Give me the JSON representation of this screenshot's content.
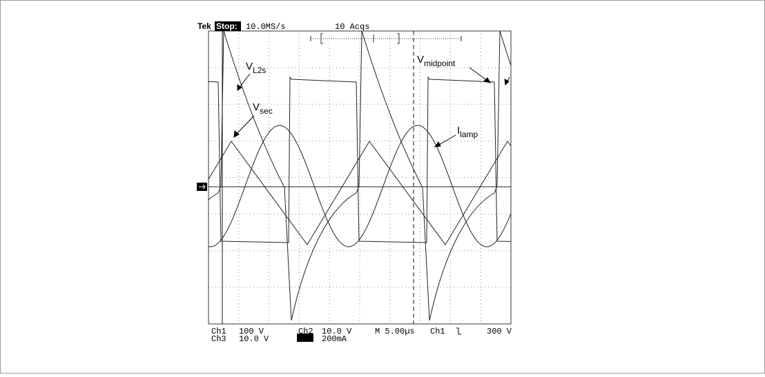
{
  "header": {
    "brand": "Tek",
    "status": "Stop:",
    "sample_rate": "10.0MS/s",
    "acquisitions": "10 Acqs"
  },
  "labels": [
    {
      "main": "V",
      "sub": "L2s"
    },
    {
      "main": "V",
      "sub": "sec"
    },
    {
      "main": "I",
      "sub": "lamp"
    },
    {
      "main": "V",
      "sub": "midpoint"
    }
  ],
  "readout": {
    "rows": [
      [
        "Ch1",
        "100 V",
        "Ch2",
        "10.0 V",
        "M 5.00µs",
        "Ch1",
        "300 V"
      ],
      [
        "Ch3",
        "10.0 V",
        "Ch4",
        "200mA"
      ]
    ]
  }
}
